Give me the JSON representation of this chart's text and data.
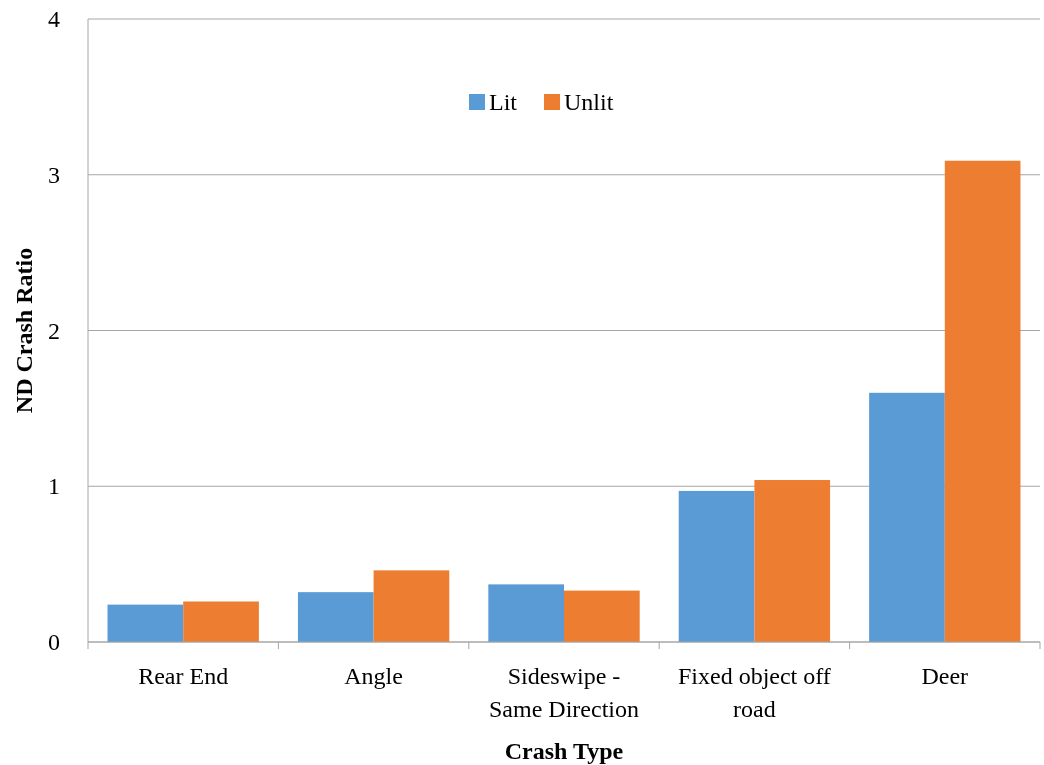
{
  "chart_data": {
    "type": "bar",
    "xlabel": "Crash Type",
    "ylabel": "ND Crash Ratio",
    "categories": [
      "Rear End",
      "Angle",
      "Sideswipe - Same Direction",
      "Fixed object off road",
      "Deer"
    ],
    "series": [
      {
        "name": "Lit",
        "color": "#5b9bd5",
        "values": [
          0.24,
          0.32,
          0.37,
          0.97,
          1.6
        ]
      },
      {
        "name": "Unlit",
        "color": "#ed7d31",
        "values": [
          0.26,
          0.46,
          0.33,
          1.04,
          3.09
        ]
      }
    ],
    "ylim": [
      0,
      4
    ],
    "yticks": [
      0,
      1,
      2,
      3,
      4
    ],
    "grid": "y",
    "legend": "top"
  }
}
